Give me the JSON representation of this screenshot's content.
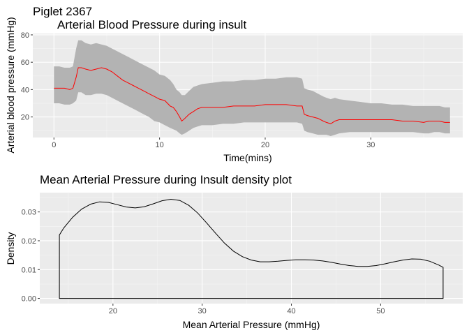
{
  "page_title": "Piglet 2367",
  "chart_data": [
    {
      "type": "line",
      "title": "Arterial Blood Pressure during insult",
      "xlabel": "Time(mins)",
      "ylabel": "Arterial blood pressure (mmHg)",
      "xlim": [
        -2.0,
        38.7
      ],
      "ylim": [
        5,
        81
      ],
      "x_ticks": [
        0,
        10,
        20,
        30
      ],
      "y_ticks": [
        20,
        40,
        60,
        80
      ],
      "grid": true,
      "line_color": "#ff0000",
      "ribbon_color": "#b3b3b3",
      "series": [
        {
          "x": [
            0,
            0.5,
            1.0,
            1.5,
            1.8,
            2.1,
            2.3,
            2.6,
            3.0,
            3.5,
            4.0,
            4.5,
            5.0,
            5.5,
            6.0,
            6.5,
            7.0,
            7.5,
            8.0,
            8.5,
            9.0,
            9.5,
            10.0,
            10.5,
            11.0,
            11.3,
            11.6,
            11.9,
            12.1,
            12.4,
            12.8,
            13.2,
            13.6,
            14.0,
            15.0,
            16.0,
            17.0,
            18.0,
            19.0,
            20.0,
            21.0,
            22.0,
            23.0,
            23.5,
            23.7,
            24.0,
            24.5,
            25.0,
            25.5,
            25.8,
            26.2,
            26.6,
            27.0,
            28.0,
            29.0,
            30.0,
            31.0,
            32.0,
            33.0,
            34.0,
            35.0,
            35.5,
            36.0,
            36.5,
            37.0,
            37.5
          ],
          "mean": [
            41,
            41,
            41,
            40,
            41,
            49,
            56,
            56,
            55,
            54,
            55,
            56,
            55,
            53,
            50,
            47,
            45,
            43,
            41,
            39,
            37,
            35,
            33,
            32,
            28,
            27,
            24,
            20,
            17,
            19,
            22,
            24,
            26,
            27,
            27,
            27,
            28,
            28,
            28,
            29,
            29,
            29,
            28,
            28,
            22,
            21,
            20,
            19,
            17,
            16,
            15,
            17,
            18,
            18,
            18,
            18,
            18,
            18,
            17,
            17,
            16,
            17,
            17,
            17,
            16,
            16
          ],
          "upper": [
            57,
            57,
            56,
            56,
            57,
            70,
            76,
            76,
            74,
            73,
            74,
            73,
            72,
            70,
            68,
            66,
            64,
            62,
            60,
            58,
            56,
            54,
            51,
            50,
            47,
            44,
            40,
            38,
            36,
            36,
            39,
            42,
            43,
            44,
            45,
            46,
            46,
            47,
            47,
            48,
            48,
            49,
            49,
            48,
            41,
            40,
            39,
            37,
            35,
            34,
            33,
            34,
            33,
            32,
            31,
            30,
            30,
            29,
            29,
            28,
            28,
            28,
            28,
            28,
            27,
            27
          ],
          "lower": [
            30,
            30,
            29,
            29,
            30,
            32,
            38,
            38,
            36,
            36,
            37,
            37,
            36,
            34,
            32,
            30,
            28,
            26,
            24,
            22,
            20,
            17,
            16,
            14,
            12,
            11,
            10,
            8,
            7,
            8,
            10,
            12,
            13,
            14,
            14,
            15,
            15,
            16,
            16,
            16,
            16,
            16,
            16,
            15,
            10,
            9,
            8,
            7,
            7,
            7,
            6,
            7,
            8,
            9,
            9,
            9,
            9,
            9,
            9,
            9,
            8,
            8,
            9,
            9,
            8,
            8
          ]
        }
      ]
    },
    {
      "type": "line",
      "title": "Mean Arterial Pressure during Insult density plot",
      "xlabel": "Mean Arterial Pressure (mmHg)",
      "ylabel": "Density",
      "xlim": [
        11.8,
        59.2
      ],
      "ylim": [
        -0.0018,
        0.0367
      ],
      "x_ticks": [
        20,
        30,
        40,
        50
      ],
      "y_ticks": [
        0.0,
        0.01,
        0.02,
        0.03
      ],
      "y_tick_labels": [
        "0.00",
        "0.01",
        "0.02",
        "0.03"
      ],
      "grid": true,
      "line_color": "#000000",
      "series": [
        {
          "x": [
            14.0,
            14.5,
            15.5,
            16.5,
            17.5,
            18.5,
            19.5,
            20.5,
            21.5,
            22.5,
            23.5,
            24.5,
            25.5,
            26.5,
            27.5,
            28.5,
            29.5,
            30.5,
            31.5,
            32.5,
            33.5,
            34.5,
            35.5,
            36.5,
            37.5,
            38.5,
            39.5,
            40.5,
            41.5,
            42.5,
            43.5,
            44.5,
            45.5,
            46.5,
            47.5,
            48.5,
            49.5,
            50.5,
            51.5,
            52.5,
            53.5,
            54.5,
            55.5,
            56.5,
            57.0
          ],
          "values": [
            0.022,
            0.0245,
            0.0282,
            0.031,
            0.0327,
            0.0335,
            0.0333,
            0.0325,
            0.0317,
            0.0314,
            0.0318,
            0.0328,
            0.0339,
            0.0344,
            0.034,
            0.0323,
            0.0296,
            0.0262,
            0.0226,
            0.0192,
            0.0164,
            0.0145,
            0.0133,
            0.0127,
            0.0127,
            0.0129,
            0.0132,
            0.0134,
            0.0134,
            0.0133,
            0.013,
            0.0125,
            0.0119,
            0.0114,
            0.0111,
            0.0111,
            0.0114,
            0.012,
            0.0127,
            0.0133,
            0.0137,
            0.0136,
            0.0129,
            0.0116,
            0.0108
          ]
        }
      ]
    }
  ]
}
